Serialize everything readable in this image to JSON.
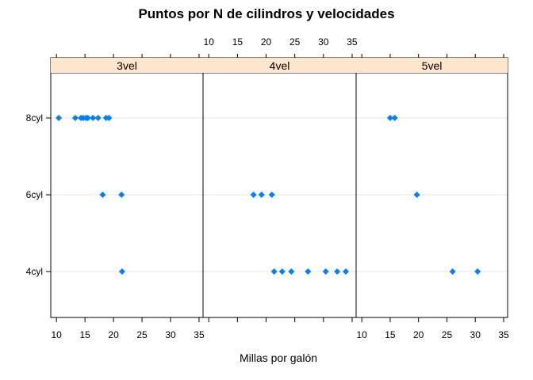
{
  "chart_data": {
    "type": "scatter",
    "title": "Puntos por N de cilindros y velocidades",
    "xlabel": "Millas por galón",
    "ylabel": "",
    "xlim": [
      9,
      35.7
    ],
    "x_ticks": [
      "10",
      "15",
      "20",
      "25",
      "30",
      "35"
    ],
    "y_categories": [
      "4cyl",
      "6cyl",
      "8cyl"
    ],
    "point_color": "#0080ff",
    "strip_color": "#ffe5cc",
    "gridline_color": "#e6e6e6",
    "panels": [
      {
        "label": "3vel",
        "points": [
          {
            "x": 10.4,
            "y": "8cyl"
          },
          {
            "x": 13.3,
            "y": "8cyl"
          },
          {
            "x": 14.3,
            "y": "8cyl"
          },
          {
            "x": 14.7,
            "y": "8cyl"
          },
          {
            "x": 15.2,
            "y": "8cyl"
          },
          {
            "x": 15.5,
            "y": "8cyl"
          },
          {
            "x": 16.4,
            "y": "8cyl"
          },
          {
            "x": 17.3,
            "y": "8cyl"
          },
          {
            "x": 18.7,
            "y": "8cyl"
          },
          {
            "x": 19.2,
            "y": "8cyl"
          },
          {
            "x": 18.1,
            "y": "6cyl"
          },
          {
            "x": 21.4,
            "y": "6cyl"
          },
          {
            "x": 21.5,
            "y": "4cyl"
          }
        ]
      },
      {
        "label": "4vel",
        "points": [
          {
            "x": 17.8,
            "y": "6cyl"
          },
          {
            "x": 19.2,
            "y": "6cyl"
          },
          {
            "x": 21.0,
            "y": "6cyl"
          },
          {
            "x": 21.4,
            "y": "4cyl"
          },
          {
            "x": 22.8,
            "y": "4cyl"
          },
          {
            "x": 24.4,
            "y": "4cyl"
          },
          {
            "x": 27.3,
            "y": "4cyl"
          },
          {
            "x": 30.4,
            "y": "4cyl"
          },
          {
            "x": 32.4,
            "y": "4cyl"
          },
          {
            "x": 33.9,
            "y": "4cyl"
          }
        ]
      },
      {
        "label": "5vel",
        "points": [
          {
            "x": 15.0,
            "y": "8cyl"
          },
          {
            "x": 15.8,
            "y": "8cyl"
          },
          {
            "x": 19.7,
            "y": "6cyl"
          },
          {
            "x": 26.0,
            "y": "4cyl"
          },
          {
            "x": 30.4,
            "y": "4cyl"
          }
        ]
      }
    ]
  }
}
